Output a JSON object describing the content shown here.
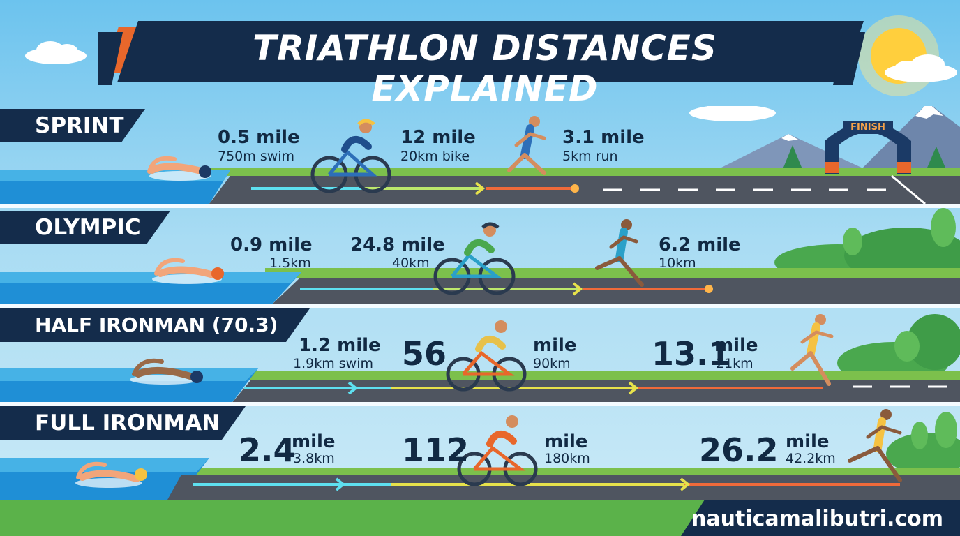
{
  "title": "TRIATHLON DISTANCES EXPLAINED",
  "finish_label": "FINISH",
  "website": "nauticamalibutri.com",
  "icons": [
    "sun-icon",
    "cloud-icon",
    "mountain-icon",
    "finish-arch-icon",
    "swimmer-icon",
    "cyclist-icon",
    "runner-icon",
    "tree-icon",
    "progress-arrow-icon"
  ],
  "colors": {
    "navy": "#142c4b",
    "water": "#1f8fd6",
    "road": "#4f5560",
    "grass": "#78c04a",
    "swim_line": "#5ee0f0",
    "bike_line": "#e7e24b",
    "run_line": "#f06a3a"
  },
  "rows": [
    {
      "level": "SPRINT",
      "swim": {
        "primary": "0.5 mile",
        "secondary": "750m swim"
      },
      "bike": {
        "primary": "12 mile",
        "secondary": "20km bike"
      },
      "run": {
        "primary": "3.1 mile",
        "secondary": "5km run"
      }
    },
    {
      "level": "OLYMPIC",
      "swim": {
        "primary": "0.9 mile",
        "secondary": "1.5km"
      },
      "bike": {
        "primary": "24.8 mile",
        "secondary": "40km"
      },
      "run": {
        "primary": "6.2 mile",
        "secondary": "10km"
      }
    },
    {
      "level": "HALF IRONMAN (70.3)",
      "swim": {
        "primary": "1.2 mile",
        "secondary": "1.9km swim"
      },
      "bike": {
        "number": "56",
        "unit": "mile",
        "secondary": "90km"
      },
      "run": {
        "number": "13.1",
        "unit": "mile",
        "secondary": "21km"
      }
    },
    {
      "level": "FULL IRONMAN",
      "swim": {
        "number": "2.4",
        "unit": "mile",
        "secondary": "3.8km"
      },
      "bike": {
        "number": "112",
        "unit": "mile",
        "secondary": "180km"
      },
      "run": {
        "number": "26.2",
        "unit": "mile",
        "secondary": "42.2km"
      }
    }
  ]
}
